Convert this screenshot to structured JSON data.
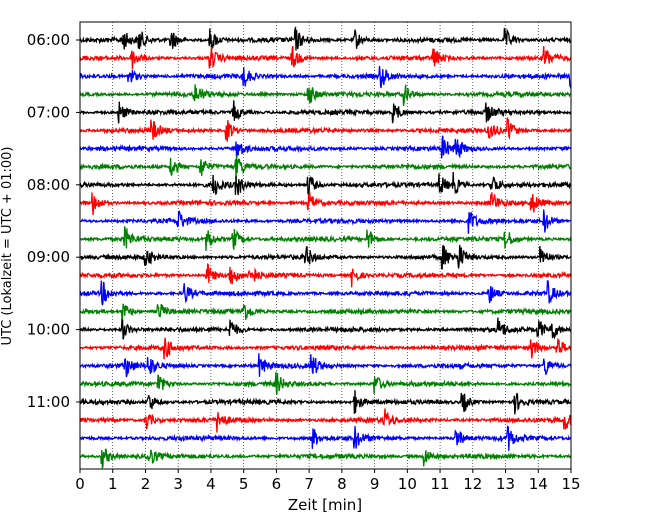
{
  "chart_data": {
    "type": "line",
    "title": "",
    "xlabel": "Zeit  [min]",
    "ylabel": "UTC (Lokalzeit = UTC + 01:00)",
    "xlim": [
      0,
      15
    ],
    "x_ticks": [
      "0",
      "1",
      "2",
      "3",
      "4",
      "5",
      "6",
      "7",
      "8",
      "9",
      "10",
      "11",
      "12",
      "13",
      "14",
      "15"
    ],
    "y_tick_labels": [
      "06:00",
      "07:00",
      "08:00",
      "09:00",
      "10:00",
      "11:00"
    ],
    "grid": "vertical dotted",
    "rows_per_hour": 4,
    "trace_minutes": 15,
    "color_cycle": [
      "#000000",
      "#ff0000",
      "#0000ff",
      "#008000"
    ],
    "series": [
      {
        "start": "06:00",
        "color": "#000000"
      },
      {
        "start": "06:15",
        "color": "#ff0000"
      },
      {
        "start": "06:30",
        "color": "#0000ff"
      },
      {
        "start": "06:45",
        "color": "#008000"
      },
      {
        "start": "07:00",
        "color": "#000000"
      },
      {
        "start": "07:15",
        "color": "#ff0000"
      },
      {
        "start": "07:30",
        "color": "#0000ff"
      },
      {
        "start": "07:45",
        "color": "#008000"
      },
      {
        "start": "08:00",
        "color": "#000000"
      },
      {
        "start": "08:15",
        "color": "#ff0000"
      },
      {
        "start": "08:30",
        "color": "#0000ff"
      },
      {
        "start": "08:45",
        "color": "#008000"
      },
      {
        "start": "09:00",
        "color": "#000000"
      },
      {
        "start": "09:15",
        "color": "#ff0000"
      },
      {
        "start": "09:30",
        "color": "#0000ff"
      },
      {
        "start": "09:45",
        "color": "#008000"
      },
      {
        "start": "10:00",
        "color": "#000000"
      },
      {
        "start": "10:15",
        "color": "#ff0000"
      },
      {
        "start": "10:30",
        "color": "#0000ff"
      },
      {
        "start": "10:45",
        "color": "#008000"
      },
      {
        "start": "11:00",
        "color": "#000000"
      },
      {
        "start": "11:15",
        "color": "#ff0000"
      },
      {
        "start": "11:30",
        "color": "#0000ff"
      },
      {
        "start": "11:45",
        "color": "#008000"
      }
    ],
    "events": [
      [
        1.3,
        1.8,
        2.8,
        4.0,
        6.6,
        8.4,
        13.0
      ],
      [
        1.6,
        4.0,
        6.5,
        10.8,
        14.2
      ],
      [
        1.5,
        5.0,
        9.2,
        15.0
      ],
      [
        3.5,
        7.0,
        9.9
      ],
      [
        1.2,
        4.7,
        9.6,
        12.4
      ],
      [
        2.2,
        4.5,
        12.5,
        13.1
      ],
      [
        4.8,
        11.1,
        11.5
      ],
      [
        2.8,
        3.7,
        4.8
      ],
      [
        4.1,
        4.8,
        7.0,
        11.0,
        11.4,
        12.6
      ],
      [
        0.4,
        7.0,
        12.6,
        13.8
      ],
      [
        3.0,
        11.9,
        14.2
      ],
      [
        1.4,
        3.9,
        4.7,
        8.8,
        13.0
      ],
      [
        2.0,
        6.9,
        11.1,
        11.6,
        14.1
      ],
      [
        3.9,
        4.6,
        5.2,
        8.3
      ],
      [
        0.7,
        3.2,
        12.5,
        14.3
      ],
      [
        1.3,
        2.4,
        5.0
      ],
      [
        1.3,
        4.6,
        12.8,
        14.0,
        14.4
      ],
      [
        2.6,
        13.8,
        14.6
      ],
      [
        1.4,
        2.1,
        5.5,
        7.1,
        14.2
      ],
      [
        2.4,
        6.0,
        9.0
      ],
      [
        2.1,
        8.4,
        11.7,
        13.3
      ],
      [
        2.0,
        4.2,
        9.3,
        14.8
      ],
      [
        7.1,
        8.4,
        11.5,
        13.1
      ],
      [
        0.7,
        2.1,
        10.5
      ]
    ]
  }
}
